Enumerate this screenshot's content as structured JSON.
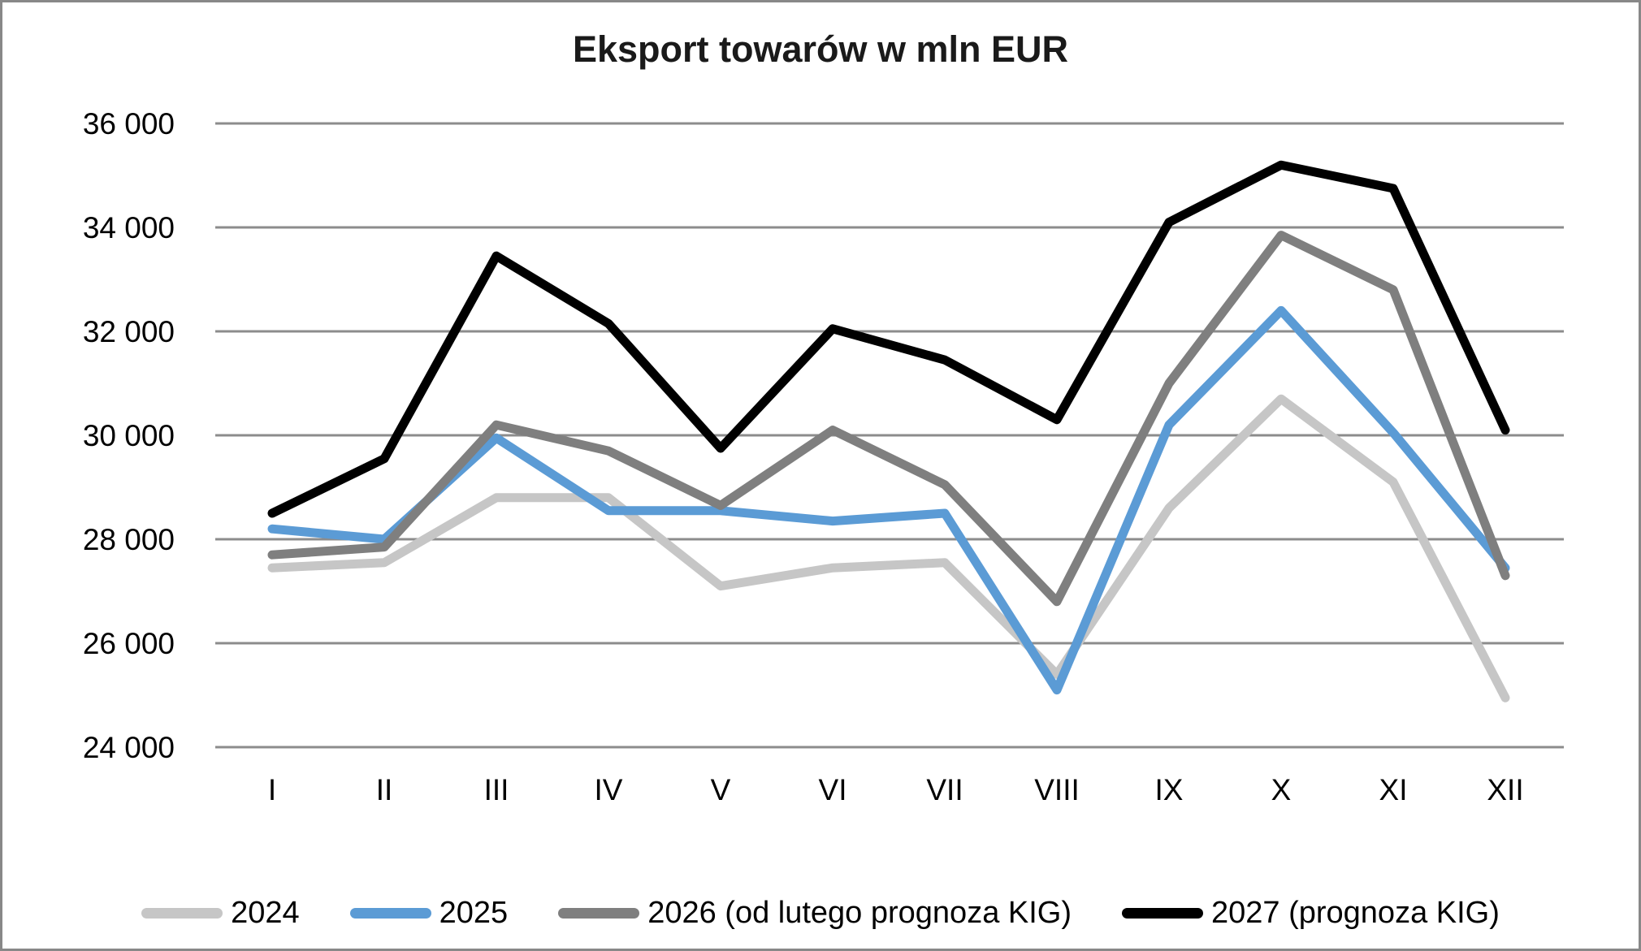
{
  "chart_data": {
    "type": "line",
    "title": "Eksport towarów w mln EUR",
    "xlabel": "",
    "ylabel": "",
    "categories": [
      "I",
      "II",
      "III",
      "IV",
      "V",
      "VI",
      "VII",
      "VIII",
      "IX",
      "X",
      "XI",
      "XII"
    ],
    "series": [
      {
        "name": "2024",
        "color": "#C6C6C6",
        "values": [
          27450,
          27550,
          28800,
          28800,
          27100,
          27450,
          27550,
          25400,
          28600,
          30700,
          29100,
          24950
        ]
      },
      {
        "name": "2025",
        "color": "#5B9BD5",
        "values": [
          28200,
          28000,
          29950,
          28550,
          28550,
          28350,
          28500,
          25100,
          30200,
          32400,
          30050,
          27450
        ]
      },
      {
        "name": "2026 (od lutego prognoza KIG)",
        "color": "#7F7F7F",
        "values": [
          27700,
          27850,
          30200,
          29700,
          28650,
          30100,
          29050,
          26800,
          31000,
          33850,
          32800,
          27300
        ]
      },
      {
        "name": "2027 (prognoza KIG)",
        "color": "#000000",
        "values": [
          28500,
          29550,
          33450,
          32150,
          29750,
          32050,
          31450,
          30300,
          34100,
          35200,
          34750,
          30100
        ]
      }
    ],
    "ylim": [
      24000,
      36000
    ],
    "ytick_step": 2000,
    "yticks": [
      {
        "value": 36000,
        "label": "36 000"
      },
      {
        "value": 34000,
        "label": "34 000"
      },
      {
        "value": 32000,
        "label": "32 000"
      },
      {
        "value": 30000,
        "label": "30 000"
      },
      {
        "value": 28000,
        "label": "28 000"
      },
      {
        "value": 26000,
        "label": "26 000"
      },
      {
        "value": 24000,
        "label": "24 000"
      }
    ],
    "grid": "horizontal",
    "grid_color": "#8C8C8C",
    "frame_border_color": "#888888",
    "legend_position": "bottom"
  }
}
